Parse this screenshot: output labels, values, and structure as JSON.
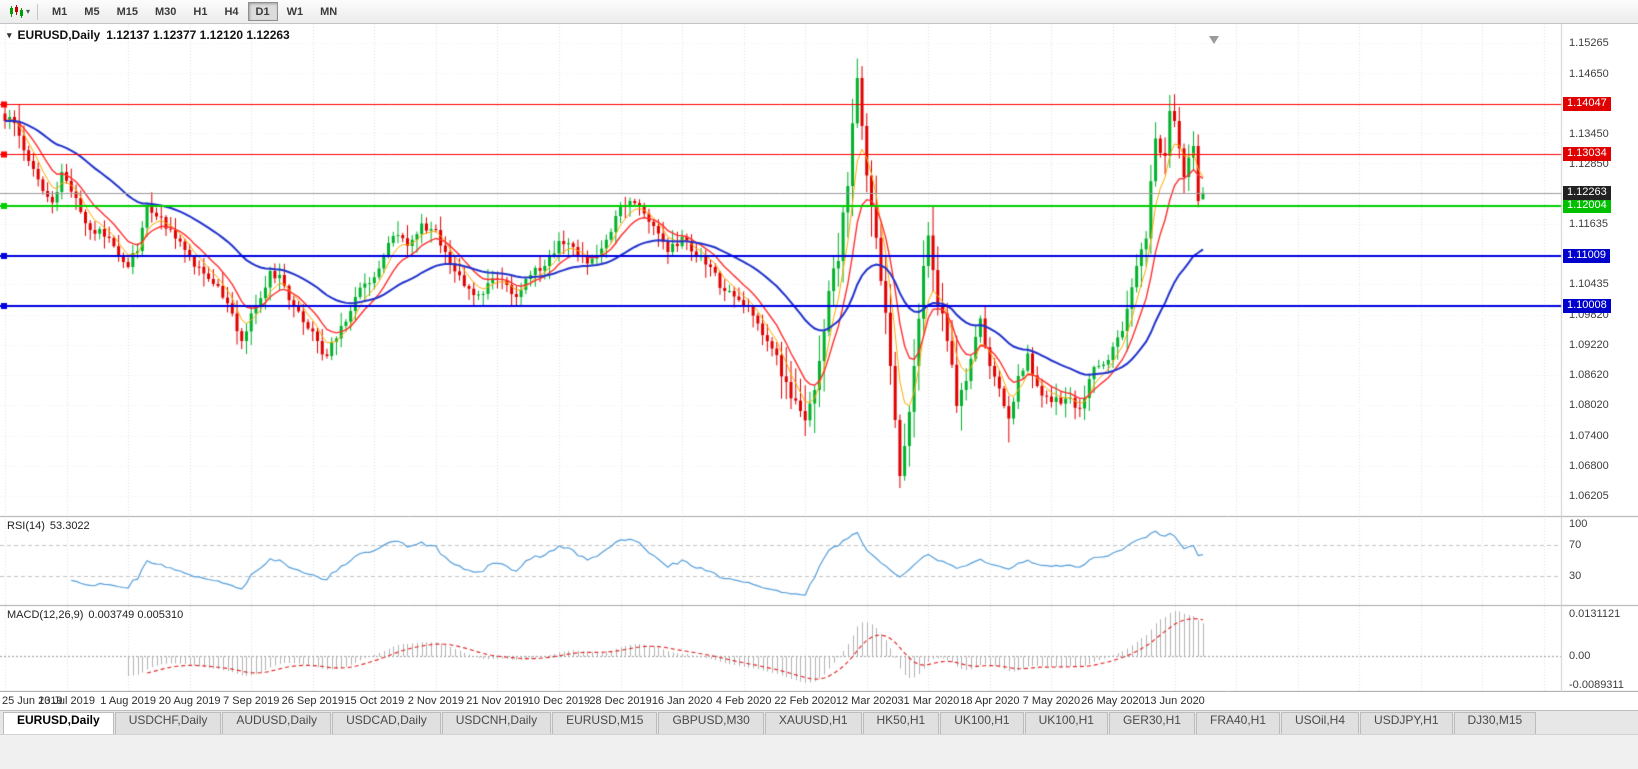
{
  "toolbar": {
    "chart_type_icon": "candlestick-chart-icon",
    "dropdown_caret": "▾",
    "timeframes": [
      "M1",
      "M5",
      "M15",
      "M30",
      "H1",
      "H4",
      "D1",
      "W1",
      "MN"
    ],
    "active_timeframe": "D1"
  },
  "chart": {
    "title": "EURUSD,Daily",
    "ohlc": "1.12137 1.12377 1.12120 1.12263",
    "current_price": "1.12263",
    "one_click_glyph": "▾"
  },
  "rsi": {
    "label": "RSI(14)",
    "value": "53.3022",
    "ticks": [
      "100",
      "70",
      "30"
    ]
  },
  "macd": {
    "label": "MACD(12,26,9)",
    "values": "0.003749 0.005310",
    "ticks": [
      "0.0131121",
      "0.00",
      "-0.0089311"
    ]
  },
  "tabs": {
    "items": [
      "EURUSD,Daily",
      "USDCHF,Daily",
      "AUDUSD,Daily",
      "USDCAD,Daily",
      "USDCNH,Daily",
      "EURUSD,M15",
      "GBPUSD,M30",
      "XAUUSD,H1",
      "HK50,H1",
      "UK100,H1",
      "UK100,H1",
      "GER30,H1",
      "FRA40,H1",
      "USOil,H4",
      "USDJPY,H1",
      "DJ30,M15"
    ],
    "active": "EURUSD,Daily"
  },
  "chart_data": {
    "type": "candlestick",
    "symbol": "EURUSD",
    "timeframe": "Daily",
    "ohlc_current": {
      "open": 1.12137,
      "high": 1.12377,
      "low": 1.1212,
      "close": 1.12263
    },
    "ylim": [
      1.0592,
      1.1552
    ],
    "price_ticks": [
      "1.15265",
      "1.14650",
      "1.13450",
      "1.12850",
      "1.11635",
      "1.10435",
      "1.09820",
      "1.09220",
      "1.08620",
      "1.08020",
      "1.07400",
      "1.06800",
      "1.06205"
    ],
    "x_labels": [
      "25 Jun 2019",
      "13 Jul 2019",
      "1 Aug 2019",
      "20 Aug 2019",
      "7 Sep 2019",
      "26 Sep 2019",
      "15 Oct 2019",
      "2 Nov 2019",
      "21 Nov 2019",
      "10 Dec 2019",
      "28 Dec 2019",
      "16 Jan 2020",
      "4 Feb 2020",
      "22 Feb 2020",
      "12 Mar 2020",
      "31 Mar 2020",
      "18 Apr 2020",
      "7 May 2020",
      "26 May 2020",
      "13 Jun 2020"
    ],
    "bars_per_label": 13,
    "up_color": "#00b22c",
    "down_color": "#e00000",
    "levels": [
      {
        "label": "1.14047",
        "value": 1.14047,
        "color": "#ff0000",
        "badge": "#e00000",
        "width": 1
      },
      {
        "label": "1.13034",
        "value": 1.13034,
        "color": "#ff0000",
        "badge": "#e00000",
        "width": 1
      },
      {
        "label": "1.12004",
        "value": 1.12004,
        "color": "#00d000",
        "badge": "#00c000",
        "width": 2
      },
      {
        "label": "1.11009",
        "value": 1.11009,
        "color": "#0000e0",
        "badge": "#0000cc",
        "width": 2
      },
      {
        "label": "1.10008",
        "value": 1.10008,
        "color": "#0000e0",
        "badge": "#0000cc",
        "width": 2
      }
    ],
    "close_keyframes": [
      [
        0,
        1.137
      ],
      [
        2,
        1.1366
      ],
      [
        5,
        1.129
      ],
      [
        8,
        1.123
      ],
      [
        10,
        1.1207
      ],
      [
        12,
        1.1268
      ],
      [
        15,
        1.1216
      ],
      [
        18,
        1.1152
      ],
      [
        22,
        1.1136
      ],
      [
        26,
        1.1078
      ],
      [
        28,
        1.111
      ],
      [
        30,
        1.1203
      ],
      [
        33,
        1.1178
      ],
      [
        36,
        1.1135
      ],
      [
        39,
        1.1098
      ],
      [
        42,
        1.1065
      ],
      [
        45,
        1.104
      ],
      [
        48,
        1.0985
      ],
      [
        50,
        1.093
      ],
      [
        53,
        1.1
      ],
      [
        56,
        1.107
      ],
      [
        58,
        1.1062
      ],
      [
        61,
        1.1
      ],
      [
        64,
        1.0955
      ],
      [
        66,
        1.093
      ],
      [
        68,
        1.09
      ],
      [
        70,
        1.0935
      ],
      [
        73,
        1.099
      ],
      [
        76,
        1.1045
      ],
      [
        79,
        1.1075
      ],
      [
        82,
        1.114
      ],
      [
        85,
        1.112
      ],
      [
        88,
        1.1165
      ],
      [
        91,
        1.1152
      ],
      [
        94,
        1.1085
      ],
      [
        97,
        1.104
      ],
      [
        100,
        1.1023
      ],
      [
        103,
        1.1055
      ],
      [
        106,
        1.1042
      ],
      [
        108,
        1.1018
      ],
      [
        111,
        1.1062
      ],
      [
        114,
        1.108
      ],
      [
        117,
        1.113
      ],
      [
        120,
        1.1118
      ],
      [
        123,
        1.1085
      ],
      [
        126,
        1.1115
      ],
      [
        129,
        1.118
      ],
      [
        132,
        1.121
      ],
      [
        134,
        1.12
      ],
      [
        137,
        1.116
      ],
      [
        140,
        1.1108
      ],
      [
        143,
        1.1138
      ],
      [
        146,
        1.1098
      ],
      [
        149,
        1.1078
      ],
      [
        152,
        1.103
      ],
      [
        156,
        1.1
      ],
      [
        159,
        1.0965
      ],
      [
        162,
        1.0915
      ],
      [
        165,
        1.0848
      ],
      [
        168,
        1.079
      ],
      [
        170,
        1.0805
      ],
      [
        172,
        1.089
      ],
      [
        174,
        1.103
      ],
      [
        176,
        1.109
      ],
      [
        178,
        1.124
      ],
      [
        180,
        1.1456
      ],
      [
        181,
        1.136
      ],
      [
        183,
        1.12
      ],
      [
        185,
        1.105
      ],
      [
        187,
        1.088
      ],
      [
        189,
        1.066
      ],
      [
        190,
        1.072
      ],
      [
        192,
        1.088
      ],
      [
        194,
        1.108
      ],
      [
        195,
        1.1141
      ],
      [
        197,
        1.1
      ],
      [
        199,
        1.093
      ],
      [
        201,
        1.08
      ],
      [
        203,
        1.085
      ],
      [
        206,
        1.0975
      ],
      [
        208,
        1.088
      ],
      [
        210,
        1.0835
      ],
      [
        212,
        1.0775
      ],
      [
        214,
        1.086
      ],
      [
        216,
        1.0905
      ],
      [
        218,
        1.084
      ],
      [
        221,
        1.0808
      ],
      [
        224,
        1.0815
      ],
      [
        227,
        1.0795
      ],
      [
        230,
        1.0878
      ],
      [
        233,
        1.0892
      ],
      [
        236,
        1.095
      ],
      [
        239,
        1.108
      ],
      [
        241,
        1.1135
      ],
      [
        243,
        1.1335
      ],
      [
        245,
        1.13
      ],
      [
        246,
        1.139
      ],
      [
        247,
        1.137
      ],
      [
        249,
        1.1258
      ],
      [
        251,
        1.132
      ],
      [
        252,
        1.121
      ],
      [
        253,
        1.12263
      ]
    ],
    "forced_extremes": [
      [
        3,
        "high",
        1.1404
      ],
      [
        68,
        "low",
        1.0895
      ],
      [
        168,
        "low",
        1.0778
      ],
      [
        180,
        "high",
        1.1495
      ],
      [
        189,
        "low",
        1.0636
      ],
      [
        212,
        "low",
        1.0727
      ],
      [
        246,
        "high",
        1.1422
      ]
    ],
    "indicators": {
      "moving_averages": [
        {
          "type": "EMA",
          "period": 5,
          "color": "#ffaa00"
        },
        {
          "type": "EMA",
          "period": 10,
          "color": "#ff3030"
        },
        {
          "type": "EMA",
          "period": 34,
          "color": "#2233cc"
        }
      ],
      "rsi": {
        "period": 14,
        "current": 53.3022,
        "color": "#58a0dc",
        "levels": [
          70,
          30
        ]
      },
      "macd": {
        "fast": 12,
        "slow": 26,
        "signal": 9,
        "macd": 0.003749,
        "signal_value": 0.00531,
        "ylim": [
          -0.0089311,
          0.0131121
        ],
        "hist_color": "#b4b4b4",
        "signal_color": "#e03030"
      }
    }
  }
}
